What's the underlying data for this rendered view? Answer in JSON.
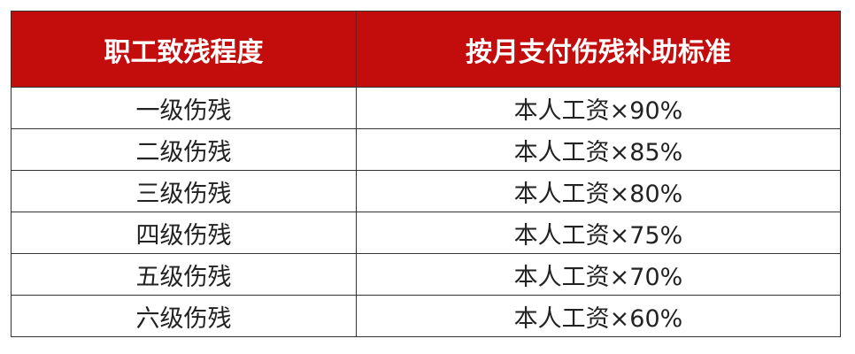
{
  "table": {
    "headers": [
      "职工致残程度",
      "按月支付伤残补助标准"
    ],
    "rows": [
      [
        "一级伤残",
        "本人工资×90%"
      ],
      [
        "二级伤残",
        "本人工资×85%"
      ],
      [
        "三级伤残",
        "本人工资×80%"
      ],
      [
        "四级伤残",
        "本人工资×75%"
      ],
      [
        "五级伤残",
        "本人工资×70%"
      ],
      [
        "六级伤残",
        "本人工资×60%"
      ]
    ]
  },
  "colors": {
    "header_bg": "#c30d0d",
    "header_text": "#ffffff"
  }
}
